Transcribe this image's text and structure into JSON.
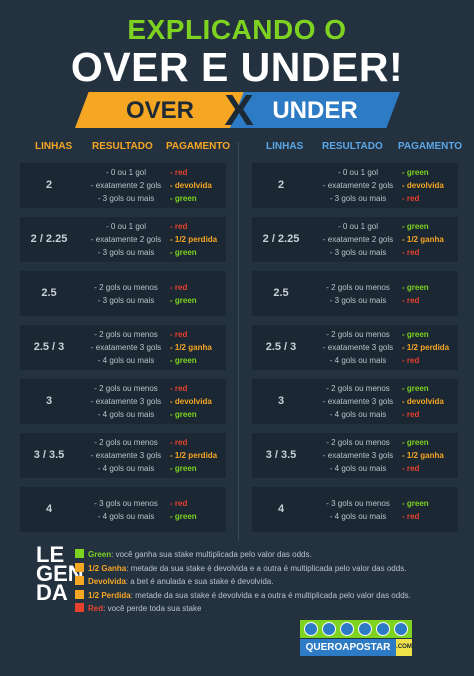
{
  "title": {
    "line1": "EXPLICANDO O",
    "line2": "OVER E UNDER!"
  },
  "banner": {
    "over": "OVER",
    "x": "X",
    "under": "UNDER"
  },
  "headers": {
    "linhas": "LINHAS",
    "resultado": "RESULTADO",
    "pagamento": "PAGAMENTO"
  },
  "colors": {
    "green": "#7ed321",
    "orange": "#f5a623",
    "red": "#e5412d",
    "blue": "#2d7bc4"
  },
  "over": [
    {
      "linha": "2",
      "resultados": [
        "- 0 ou 1 gol",
        "- exatamente 2 gols",
        "- 3 gols ou mais"
      ],
      "pagamentos": [
        "- red",
        "- devolvida",
        "- green"
      ]
    },
    {
      "linha": "2 / 2.25",
      "resultados": [
        "- 0 ou 1 gol",
        "- exatamente 2 gols",
        "- 3 gols ou mais"
      ],
      "pagamentos": [
        "- red",
        "- 1/2 perdida",
        "- green"
      ]
    },
    {
      "linha": "2.5",
      "resultados": [
        "- 2 gols ou menos",
        "- 3 gols ou mais"
      ],
      "pagamentos": [
        "- red",
        "- green"
      ]
    },
    {
      "linha": "2.5 / 3",
      "resultados": [
        "- 2 gols ou menos",
        "- exatamente 3 gols",
        "- 4 gols ou mais"
      ],
      "pagamentos": [
        "- red",
        "- 1/2 ganha",
        "- green"
      ]
    },
    {
      "linha": "3",
      "resultados": [
        "- 2 gols ou menos",
        "- exatamente 3 gols",
        "- 4 gols ou mais"
      ],
      "pagamentos": [
        "- red",
        "- devolvida",
        "- green"
      ]
    },
    {
      "linha": "3 / 3.5",
      "resultados": [
        "- 2 gols ou menos",
        "- exatamente 3 gols",
        "- 4 gols ou mais"
      ],
      "pagamentos": [
        "- red",
        "- 1/2 perdida",
        "- green"
      ]
    },
    {
      "linha": "4",
      "resultados": [
        "- 3 gols ou menos",
        "- 4 gols ou mais"
      ],
      "pagamentos": [
        "- red",
        "- green"
      ]
    }
  ],
  "under": [
    {
      "linha": "2",
      "resultados": [
        "- 0 ou 1 gol",
        "- exatamente 2 gols",
        "- 3 gols ou mais"
      ],
      "pagamentos": [
        "- green",
        "- devolvida",
        "- red"
      ]
    },
    {
      "linha": "2 / 2.25",
      "resultados": [
        "- 0 ou 1 gol",
        "- exatamente 2 gols",
        "- 3 gols ou mais"
      ],
      "pagamentos": [
        "- green",
        "- 1/2 ganha",
        "- red"
      ]
    },
    {
      "linha": "2.5",
      "resultados": [
        "- 2 gols ou menos",
        "- 3 gols ou mais"
      ],
      "pagamentos": [
        "- green",
        "- red"
      ]
    },
    {
      "linha": "2.5 / 3",
      "resultados": [
        "- 2 gols ou menos",
        "- exatamente 3 gols",
        "- 4 gols ou mais"
      ],
      "pagamentos": [
        "- green",
        "- 1/2 perdida",
        "- red"
      ]
    },
    {
      "linha": "3",
      "resultados": [
        "- 2 gols ou menos",
        "- exatamente 3 gols",
        "- 4 gols ou mais"
      ],
      "pagamentos": [
        "- green",
        "- devolvida",
        "- red"
      ]
    },
    {
      "linha": "3 / 3.5",
      "resultados": [
        "- 2 gols ou menos",
        "- exatamente 3 gols",
        "- 4 gols ou mais"
      ],
      "pagamentos": [
        "- green",
        "- 1/2 ganha",
        "- red"
      ]
    },
    {
      "linha": "4",
      "resultados": [
        "- 3 gols ou menos",
        "- 4 gols ou mais"
      ],
      "pagamentos": [
        "- green",
        "- red"
      ]
    }
  ],
  "legend": {
    "title": [
      "LE",
      "GEN",
      "DA"
    ],
    "items": [
      {
        "term": "Green",
        "text": ": você ganha sua stake multiplicada pelo valor das odds.",
        "color": "#7ed321"
      },
      {
        "term": "1/2 Ganha",
        "text": ": metade da sua stake é devolvida e a outra é multiplicada pelo valor das odds.",
        "color": "#f5a623"
      },
      {
        "term": "Devolvida",
        "text": ": a bet é anulada e sua stake é devolvida.",
        "color": "#f5a623"
      },
      {
        "term": "1/2 Perdida",
        "text": ": metade da sua stake é devolvida e a outra é multiplicada pelo valor das odds.",
        "color": "#f5a623"
      },
      {
        "term": "Red",
        "text": ": você perde toda sua stake",
        "color": "#e5412d"
      }
    ]
  },
  "logo": {
    "name": "QUEROAPOSTAR",
    "tag": ".COM"
  }
}
